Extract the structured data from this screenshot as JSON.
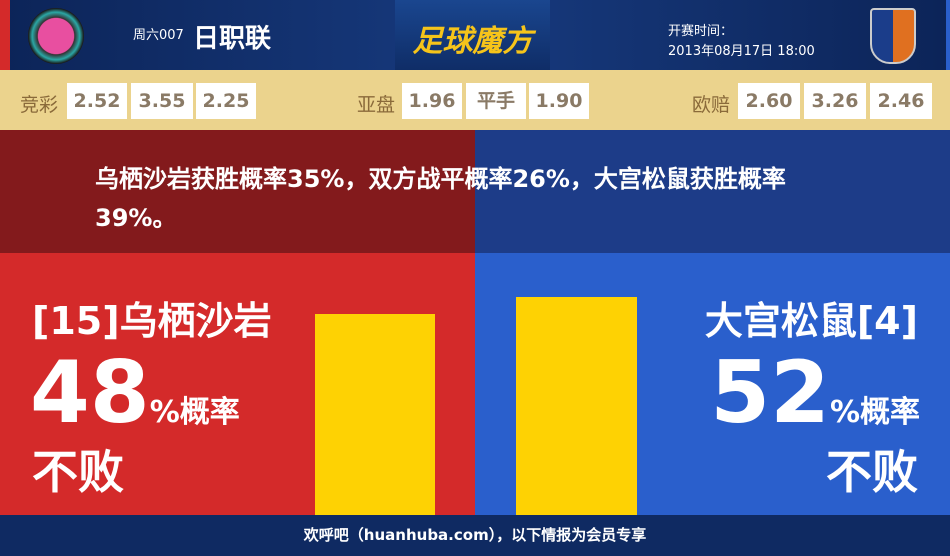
{
  "header": {
    "week_code": "周六007",
    "league": "日职联",
    "brand": "足球魔方",
    "kickoff_label": "开赛时间：",
    "kickoff_time": "2013年08月17日 18:00"
  },
  "odds": {
    "jingcai": {
      "label": "竞彩",
      "values": [
        "2.52",
        "3.55",
        "2.25"
      ]
    },
    "yapan": {
      "label": "亚盘",
      "values": [
        "1.96",
        "平手",
        "1.90"
      ]
    },
    "oupei": {
      "label": "欧赔",
      "values": [
        "2.60",
        "3.26",
        "2.46"
      ]
    }
  },
  "summary": "乌栖沙岩获胜概率35%，双方战平概率26%，大宫松鼠获胜概率39%。",
  "home": {
    "name": "[15]乌栖沙岩",
    "percent": "48",
    "percent_value": 48,
    "unit": "%概率",
    "outcome": "不败"
  },
  "away": {
    "name": "大宫松鼠[4]",
    "percent": "52",
    "percent_value": 52,
    "unit": "%概率",
    "outcome": "不败"
  },
  "colors": {
    "home": "#d42a2a",
    "away": "#2a5fcc",
    "bar": "#fed203"
  },
  "footer": "欢呼吧（huanhuba.com），以下情报为会员专享"
}
